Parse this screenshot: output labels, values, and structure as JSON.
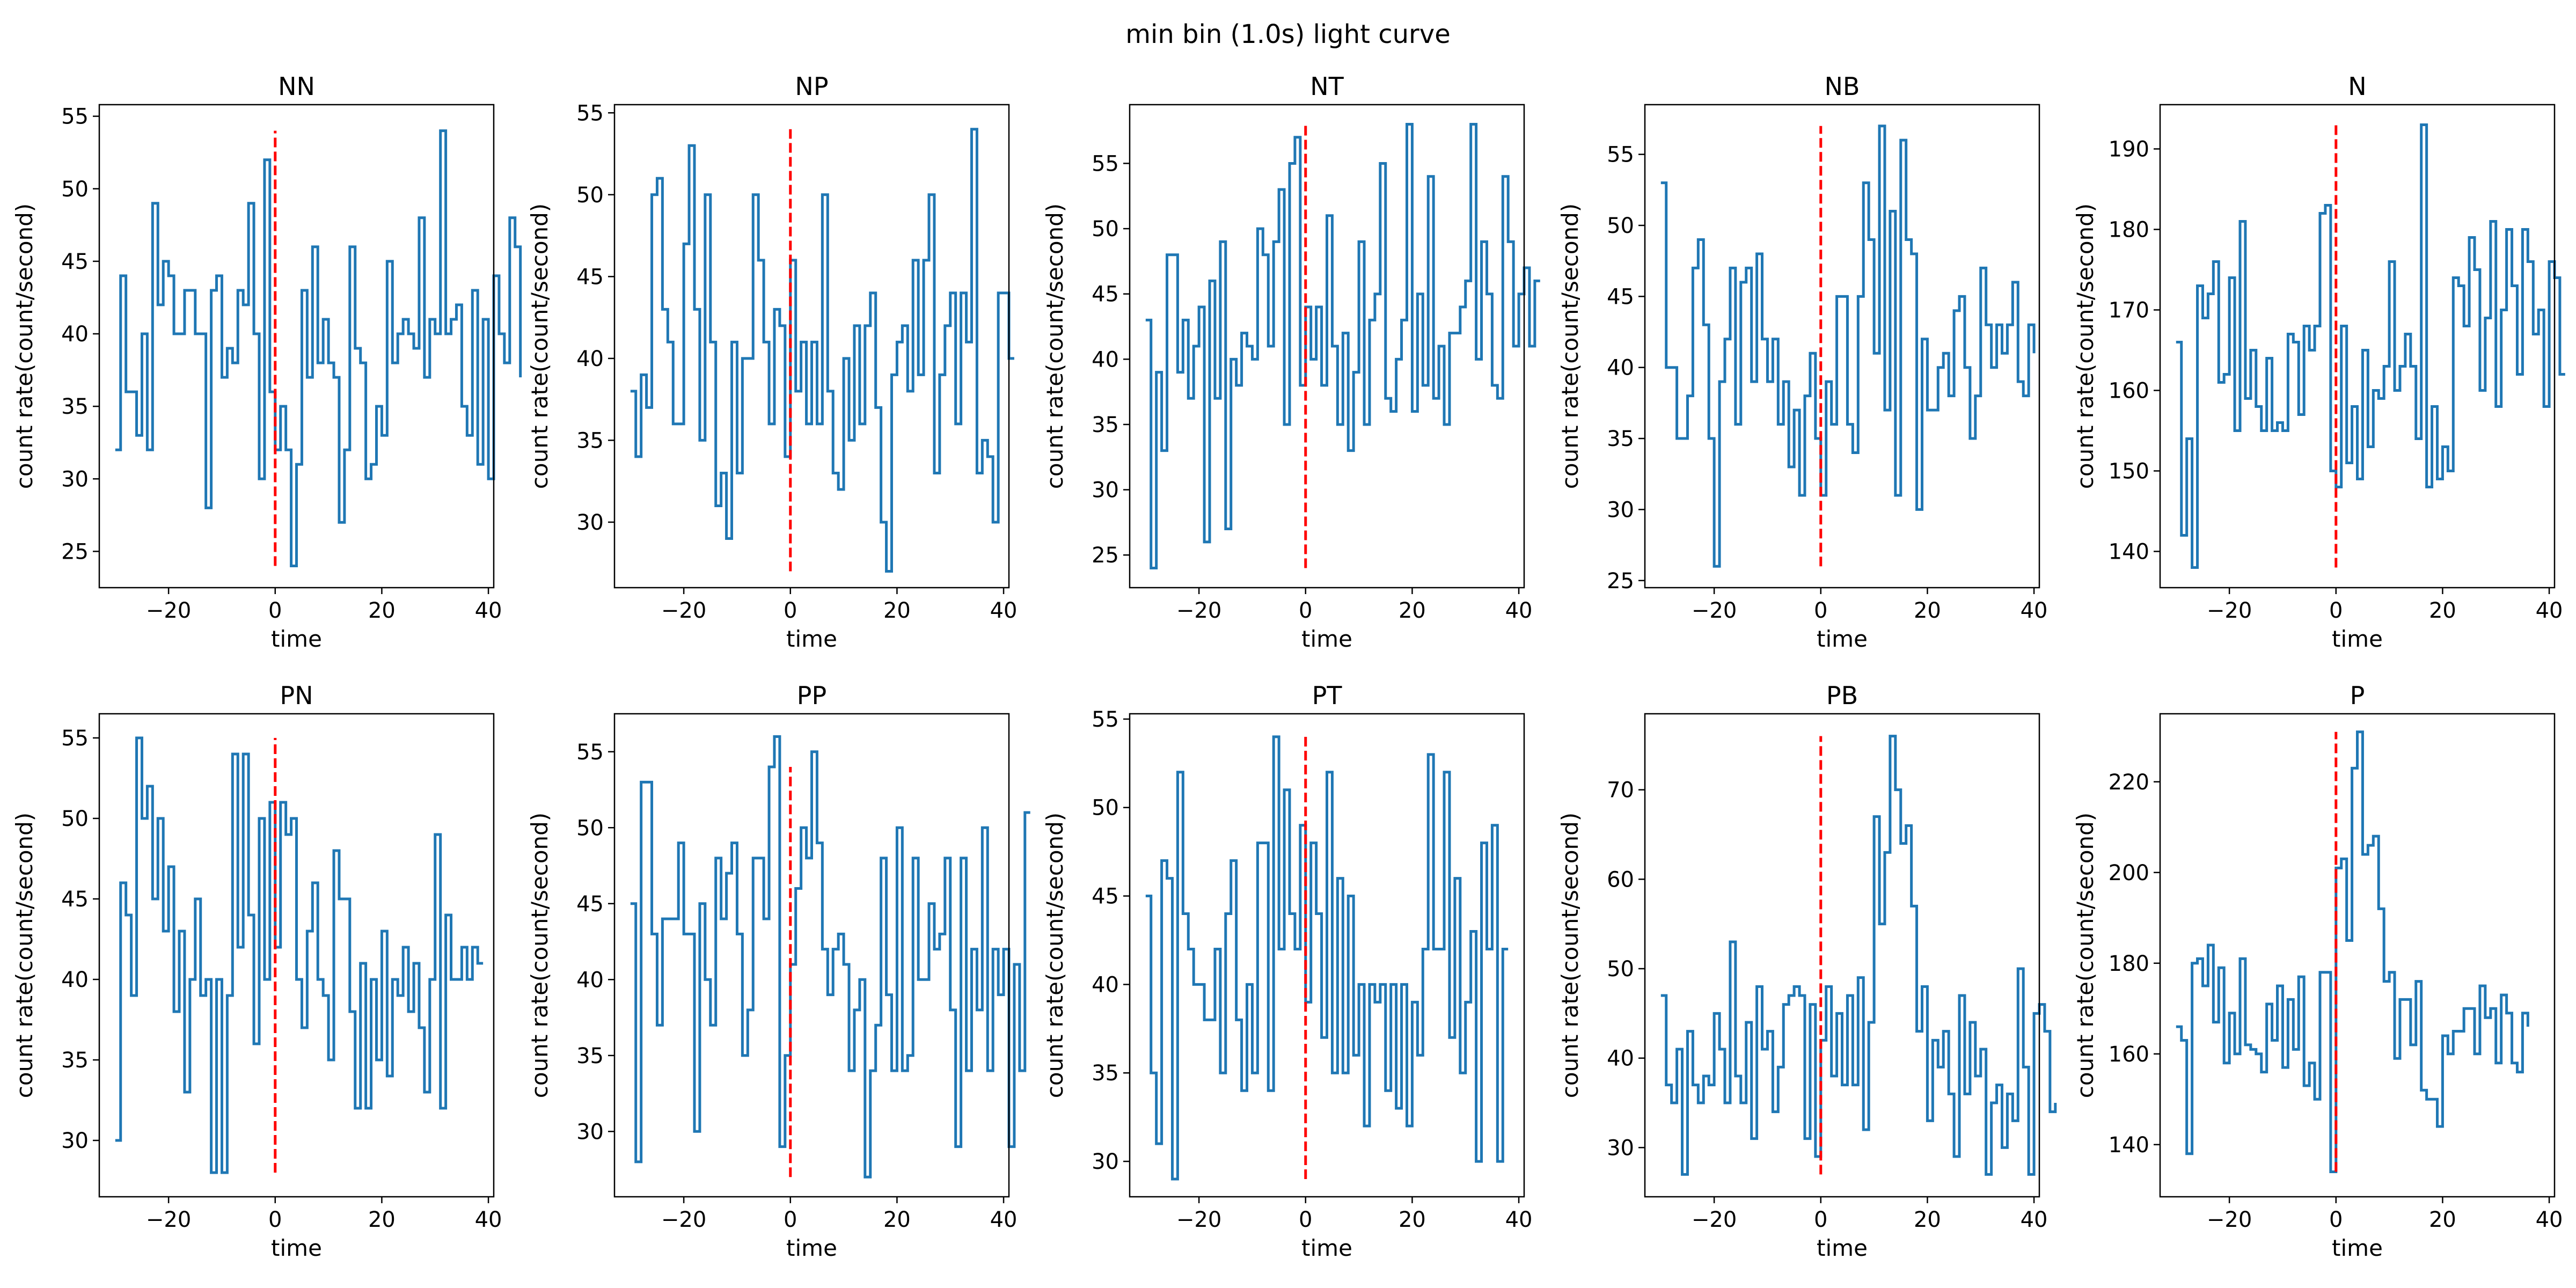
{
  "figure": {
    "title": "min bin (1.0s) light curve"
  },
  "chart_data": [
    {
      "type": "line",
      "title": "NN",
      "xlabel": "time",
      "ylabel": "count rate(count/second)",
      "xlim": [
        -33,
        41
      ],
      "ylim": [
        22.5,
        55.8
      ],
      "xticks": [
        -20,
        0,
        20,
        40
      ],
      "yticks": [
        25,
        30,
        35,
        40,
        45,
        50,
        55
      ],
      "x_start": -30,
      "step": 1,
      "drawstyle": "steps-post",
      "marker_x": 0,
      "marker_range": [
        24,
        54
      ],
      "values": [
        32,
        44,
        36,
        36,
        33,
        40,
        32,
        49,
        42,
        45,
        44,
        40,
        40,
        43,
        43,
        40,
        40,
        28,
        43,
        44,
        37,
        39,
        38,
        43,
        42,
        49,
        40,
        30,
        52,
        36,
        32,
        35,
        32,
        24,
        31,
        43,
        37,
        46,
        38,
        41,
        38,
        37,
        27,
        32,
        46,
        39,
        38,
        30,
        31,
        35,
        33,
        45,
        38,
        40,
        41,
        40,
        39,
        48,
        37,
        41,
        40,
        54,
        40,
        41,
        42,
        35,
        33,
        43,
        31,
        41,
        30,
        44,
        40,
        38,
        48,
        46,
        37
      ]
    },
    {
      "type": "line",
      "title": "NP",
      "xlabel": "time",
      "ylabel": "count rate(count/second)",
      "xlim": [
        -33,
        41
      ],
      "ylim": [
        26,
        55.5
      ],
      "xticks": [
        -20,
        0,
        20,
        40
      ],
      "yticks": [
        30,
        35,
        40,
        45,
        50,
        55
      ],
      "x_start": -30,
      "step": 1,
      "drawstyle": "steps-post",
      "marker_x": 0,
      "marker_range": [
        27,
        54
      ],
      "values": [
        38,
        34,
        39,
        37,
        50,
        51,
        43,
        41,
        36,
        36,
        47,
        53,
        43,
        35,
        50,
        41,
        31,
        33,
        29,
        41,
        33,
        40,
        40,
        50,
        46,
        41,
        36,
        43,
        42,
        34,
        46,
        38,
        41,
        36,
        41,
        36,
        50,
        38,
        33,
        32,
        40,
        35,
        42,
        36,
        42,
        44,
        37,
        30,
        27,
        39,
        41,
        42,
        38,
        46,
        39,
        46,
        50,
        33,
        39,
        42,
        44,
        36,
        44,
        41,
        54,
        33,
        35,
        34,
        30,
        44,
        44,
        40,
        40
      ]
    },
    {
      "type": "line",
      "title": "NT",
      "xlabel": "time",
      "ylabel": "count rate(count/second)",
      "xlim": [
        -33,
        41
      ],
      "ylim": [
        22.5,
        59.5
      ],
      "xticks": [
        -20,
        0,
        20,
        40
      ],
      "yticks": [
        25,
        30,
        35,
        40,
        45,
        50,
        55
      ],
      "x_start": -30,
      "step": 1,
      "drawstyle": "steps-post",
      "marker_x": 0,
      "marker_range": [
        24,
        58
      ],
      "values": [
        43,
        24,
        39,
        33,
        48,
        48,
        39,
        43,
        37,
        41,
        44,
        26,
        46,
        37,
        49,
        27,
        40,
        38,
        42,
        41,
        40,
        50,
        48,
        41,
        49,
        53,
        35,
        55,
        57,
        38,
        44,
        40,
        44,
        38,
        51,
        41,
        35,
        42,
        33,
        39,
        49,
        35,
        43,
        45,
        55,
        37,
        36,
        40,
        43,
        58,
        36,
        45,
        38,
        54,
        37,
        41,
        35,
        42,
        42,
        44,
        46,
        58,
        40,
        49,
        45,
        38,
        37,
        54,
        49,
        41,
        45,
        47,
        41,
        46,
        46
      ]
    },
    {
      "type": "line",
      "title": "NB",
      "xlabel": "time",
      "ylabel": "count rate(count/second)",
      "xlim": [
        -33,
        41
      ],
      "ylim": [
        24.5,
        58.5
      ],
      "xticks": [
        -20,
        0,
        20,
        40
      ],
      "yticks": [
        25,
        30,
        35,
        40,
        45,
        50,
        55
      ],
      "x_start": -30,
      "step": 1,
      "drawstyle": "steps-post",
      "marker_x": 0,
      "marker_range": [
        26,
        57
      ],
      "values": [
        53,
        40,
        40,
        35,
        35,
        38,
        47,
        49,
        43,
        35,
        26,
        39,
        42,
        47,
        36,
        46,
        47,
        39,
        48,
        42,
        39,
        42,
        36,
        39,
        33,
        37,
        31,
        38,
        41,
        35,
        31,
        39,
        36,
        45,
        45,
        36,
        34,
        45,
        53,
        49,
        41,
        57,
        37,
        51,
        31,
        56,
        49,
        48,
        30,
        42,
        37,
        37,
        40,
        41,
        38,
        44,
        45,
        40,
        35,
        38,
        47,
        43,
        40,
        43,
        41,
        43,
        46,
        39,
        38,
        43,
        41
      ]
    },
    {
      "type": "line",
      "title": "N",
      "xlabel": "time",
      "ylabel": "count rate(count/second)",
      "xlim": [
        -33,
        41
      ],
      "ylim": [
        135.5,
        195.5
      ],
      "xticks": [
        -20,
        0,
        20,
        40
      ],
      "yticks": [
        140,
        150,
        160,
        170,
        180,
        190
      ],
      "x_start": -30,
      "step": 1,
      "drawstyle": "steps-post",
      "marker_x": 0,
      "marker_range": [
        138,
        193
      ],
      "values": [
        166,
        142,
        154,
        138,
        173,
        169,
        172,
        176,
        161,
        162,
        174,
        155,
        181,
        159,
        165,
        158,
        155,
        164,
        155,
        156,
        155,
        167,
        166,
        157,
        168,
        165,
        168,
        182,
        183,
        150,
        148,
        168,
        151,
        158,
        149,
        165,
        153,
        160,
        159,
        163,
        176,
        160,
        163,
        167,
        163,
        154,
        193,
        148,
        158,
        149,
        153,
        150,
        174,
        173,
        168,
        179,
        175,
        160,
        169,
        181,
        158,
        170,
        180,
        173,
        162,
        180,
        176,
        167,
        170,
        158,
        176,
        174,
        162,
        162
      ]
    },
    {
      "type": "line",
      "title": "PN",
      "xlabel": "time",
      "ylabel": "count rate(count/second)",
      "xlim": [
        -33,
        41
      ],
      "ylim": [
        26.5,
        56.5
      ],
      "xticks": [
        -20,
        0,
        20,
        40
      ],
      "yticks": [
        30,
        35,
        40,
        45,
        50,
        55
      ],
      "x_start": -30,
      "step": 1,
      "drawstyle": "steps-post",
      "marker_x": 0,
      "marker_range": [
        28,
        55
      ],
      "values": [
        30,
        46,
        44,
        39,
        55,
        50,
        52,
        45,
        50,
        43,
        47,
        38,
        43,
        33,
        40,
        45,
        39,
        40,
        28,
        40,
        28,
        39,
        54,
        42,
        54,
        44,
        36,
        50,
        40,
        51,
        42,
        51,
        49,
        50,
        40,
        37,
        43,
        46,
        40,
        39,
        35,
        48,
        45,
        45,
        38,
        32,
        41,
        32,
        40,
        35,
        43,
        34,
        40,
        39,
        42,
        38,
        41,
        37,
        33,
        40,
        49,
        32,
        44,
        40,
        40,
        42,
        40,
        42,
        41,
        41
      ]
    },
    {
      "type": "line",
      "title": "PP",
      "xlabel": "time",
      "ylabel": "count rate(count/second)",
      "xlim": [
        -33,
        41
      ],
      "ylim": [
        25.7,
        57.5
      ],
      "xticks": [
        -20,
        0,
        20,
        40
      ],
      "yticks": [
        30,
        35,
        40,
        45,
        50,
        55
      ],
      "x_start": -30,
      "step": 1,
      "drawstyle": "steps-post",
      "marker_x": 0,
      "marker_range": [
        27,
        54
      ],
      "values": [
        45,
        28,
        53,
        53,
        43,
        37,
        44,
        44,
        44,
        49,
        43,
        43,
        30,
        45,
        40,
        37,
        48,
        44,
        47,
        49,
        43,
        35,
        38,
        48,
        48,
        44,
        54,
        56,
        29,
        35,
        41,
        46,
        50,
        48,
        55,
        49,
        42,
        39,
        42,
        43,
        41,
        34,
        38,
        40,
        27,
        34,
        37,
        48,
        39,
        34,
        50,
        34,
        35,
        48,
        40,
        40,
        45,
        42,
        43,
        48,
        38,
        29,
        48,
        34,
        42,
        38,
        50,
        34,
        42,
        39,
        42,
        29,
        41,
        34,
        51,
        51
      ]
    },
    {
      "type": "line",
      "title": "PT",
      "xlabel": "time",
      "ylabel": "count rate(count/second)",
      "xlim": [
        -33,
        41
      ],
      "ylim": [
        28,
        55.3
      ],
      "xticks": [
        -20,
        0,
        20,
        40
      ],
      "yticks": [
        30,
        35,
        40,
        45,
        50,
        55
      ],
      "x_start": -30,
      "step": 1,
      "drawstyle": "steps-post",
      "marker_x": 0,
      "marker_range": [
        29,
        54
      ],
      "values": [
        45,
        35,
        31,
        47,
        46,
        29,
        52,
        44,
        42,
        40,
        40,
        38,
        38,
        42,
        35,
        44,
        47,
        38,
        34,
        40,
        35,
        48,
        48,
        34,
        54,
        42,
        51,
        44,
        42,
        49,
        39,
        48,
        44,
        37,
        52,
        35,
        46,
        35,
        45,
        36,
        40,
        32,
        40,
        39,
        40,
        34,
        40,
        33,
        40,
        32,
        39,
        36,
        42,
        53,
        42,
        42,
        52,
        37,
        46,
        35,
        39,
        43,
        30,
        48,
        42,
        49,
        30,
        42,
        42
      ]
    },
    {
      "type": "line",
      "title": "PB",
      "xlabel": "time",
      "ylabel": "count rate(count/second)",
      "xlim": [
        -33,
        41
      ],
      "ylim": [
        24.5,
        78.5
      ],
      "xticks": [
        -20,
        0,
        20,
        40
      ],
      "yticks": [
        30,
        40,
        50,
        60,
        70
      ],
      "x_start": -30,
      "step": 1,
      "drawstyle": "steps-post",
      "marker_x": 0,
      "marker_range": [
        27,
        76
      ],
      "values": [
        47,
        37,
        35,
        41,
        27,
        43,
        37,
        35,
        38,
        37,
        45,
        41,
        35,
        53,
        38,
        35,
        44,
        31,
        48,
        41,
        43,
        34,
        39,
        46,
        47,
        48,
        47,
        31,
        46,
        29,
        42,
        48,
        38,
        45,
        37,
        47,
        37,
        49,
        32,
        44,
        67,
        55,
        63,
        76,
        70,
        64,
        66,
        57,
        43,
        48,
        33,
        42,
        39,
        43,
        36,
        29,
        47,
        36,
        44,
        38,
        41,
        27,
        35,
        37,
        30,
        36,
        33,
        50,
        39,
        27,
        45,
        46,
        43,
        34,
        35
      ]
    },
    {
      "type": "line",
      "title": "P",
      "xlabel": "time",
      "ylabel": "count rate(count/second)",
      "xlim": [
        -33,
        41
      ],
      "ylim": [
        128.5,
        235
      ],
      "xticks": [
        -20,
        0,
        20,
        40
      ],
      "yticks": [
        140,
        160,
        180,
        200,
        220
      ],
      "x_start": -30,
      "step": 1,
      "drawstyle": "steps-post",
      "marker_x": 0,
      "marker_range": [
        134,
        231
      ],
      "values": [
        166,
        163,
        138,
        180,
        181,
        175,
        184,
        167,
        179,
        158,
        169,
        160,
        181,
        162,
        161,
        160,
        156,
        171,
        163,
        175,
        157,
        172,
        161,
        177,
        153,
        158,
        150,
        178,
        178,
        134,
        201,
        203,
        185,
        223,
        231,
        204,
        206,
        208,
        192,
        176,
        178,
        159,
        172,
        172,
        162,
        176,
        152,
        150,
        150,
        144,
        164,
        160,
        165,
        165,
        170,
        170,
        160,
        175,
        168,
        170,
        158,
        173,
        169,
        158,
        156,
        169,
        166
      ]
    }
  ]
}
